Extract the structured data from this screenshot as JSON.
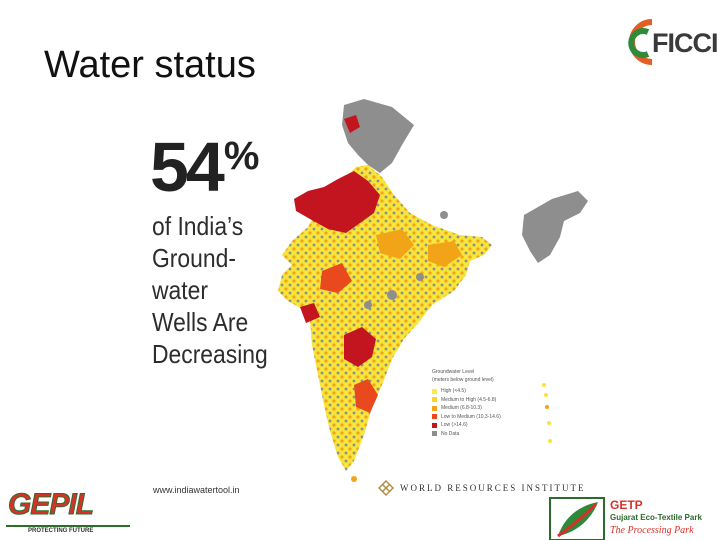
{
  "slide": {
    "title": "Water status"
  },
  "figure": {
    "headline_number": "54",
    "headline_percent": "%",
    "headline_lines": [
      "of India’s",
      "Ground-",
      "water",
      "Wells Are",
      "Decreasing"
    ],
    "legend": {
      "title_line1": "Groundwater Level",
      "title_line2": "(meters below ground level)",
      "items": [
        {
          "label": "High (<4.5)",
          "color": "#f7ec4a"
        },
        {
          "label": "Medium to High (4.5-6.8)",
          "color": "#f5d526"
        },
        {
          "label": "Medium (6.8-10.3)",
          "color": "#f2a419"
        },
        {
          "label": "Low to Medium (10.3-14.6)",
          "color": "#e8491d"
        },
        {
          "label": "Low (>14.6)",
          "color": "#c3151f"
        },
        {
          "label": "No Data",
          "color": "#8e8e8e"
        }
      ]
    },
    "source_url": "www.indiawatertool.in",
    "source_org": "WORLD RESOURCES INSTITUTE"
  },
  "logos": {
    "ficci": "FICCI",
    "gepil": {
      "name": "GEPIL",
      "tagline": "PROTECTING FUTURE"
    },
    "getp": {
      "name": "GETP",
      "subtitle": "Gujarat Eco-Textile Park",
      "tagline": "The Processing Park"
    }
  },
  "colors": {
    "red": "#c3151f",
    "orange": "#f2a419",
    "yellow": "#f7ec4a",
    "gray": "#8e8e8e"
  }
}
